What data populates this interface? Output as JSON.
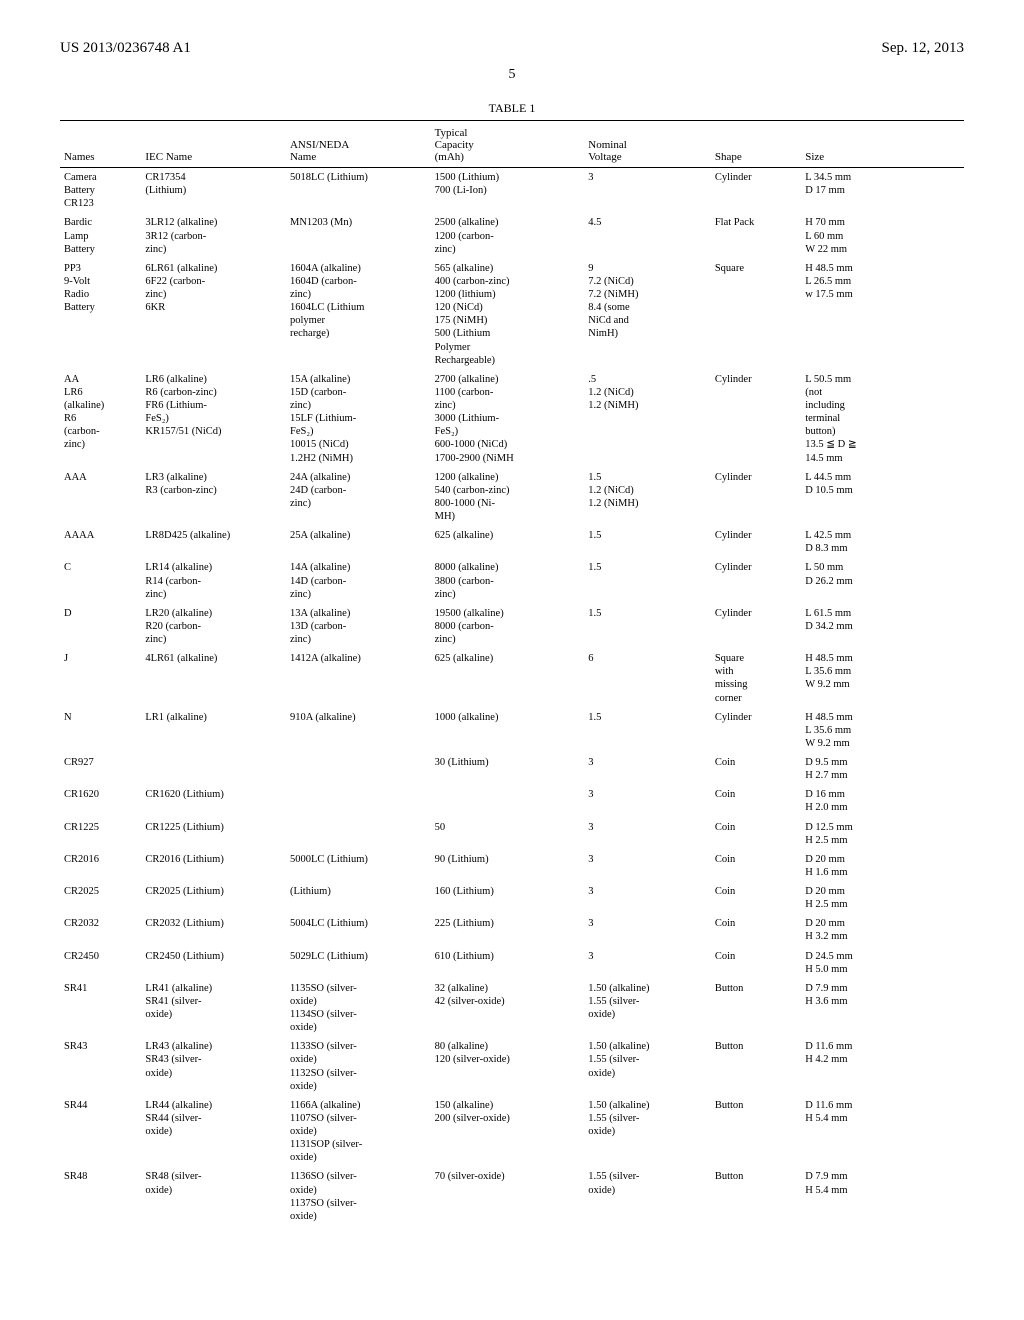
{
  "header": {
    "left": "US 2013/0236748 A1",
    "right": "Sep. 12, 2013",
    "page_number": "5"
  },
  "table": {
    "title": "TABLE 1",
    "columns": [
      "Names",
      "IEC Name",
      "ANSI/NEDA\nName",
      "Typical\nCapacity\n(mAh)",
      "Nominal\nVoltage",
      "Shape",
      "Size"
    ],
    "rows": [
      [
        "Camera\nBattery\nCR123",
        "CR17354\n(Lithium)",
        "5018LC (Lithium)",
        "1500 (Lithium)\n700 (Li-Ion)",
        "3",
        "Cylinder",
        "L 34.5 mm\nD 17 mm"
      ],
      [
        "Bardic\nLamp\nBattery",
        "3LR12 (alkaline)\n3R12 (carbon-\nzinc)",
        "MN1203 (Mn)",
        "2500 (alkaline)\n1200 (carbon-\nzinc)",
        "4.5",
        "Flat Pack",
        "H 70 mm\nL 60 mm\nW 22 mm"
      ],
      [
        "PP3\n9-Volt\nRadio\nBattery",
        "6LR61 (alkaline)\n6F22 (carbon-\nzinc)\n6KR",
        "1604A (alkaline)\n1604D (carbon-\nzinc)\n1604LC (Lithium\npolymer\nrecharge)",
        "565 (alkaline)\n400 (carbon-zinc)\n1200 (lithium)\n120 (NiCd)\n175 (NiMH)\n500 (Lithium\nPolymer\nRechargeable)",
        "9\n7.2 (NiCd)\n7.2 (NiMH)\n8.4 (some\nNiCd and\nNimH)",
        "Square",
        "H 48.5 mm\nL 26.5 mm\nw 17.5 mm"
      ],
      [
        "AA\nLR6\n(alkaline)\nR6\n(carbon-\nzinc)",
        "LR6 (alkaline)\nR6 (carbon-zinc)\nFR6 (Lithium-\nFeS₂)\nKR157/51 (NiCd)",
        "15A (alkaline)\n15D (carbon-\nzinc)\n15LF (Lithium-\nFeS₂)\n10015 (NiCd)\n1.2H2 (NiMH)",
        "2700 (alkaline)\n1100 (carbon-\nzinc)\n3000 (Lithium-\nFeS₂)\n600-1000 (NiCd)\n1700-2900 (NiMH",
        ".5\n1.2 (NiCd)\n1.2 (NiMH)",
        "Cylinder",
        "L 50.5 mm\n(not\nincluding\nterminal\nbutton)\n13.5 ≦ D ≧\n14.5 mm"
      ],
      [
        "AAA",
        "LR3 (alkaline)\nR3 (carbon-zinc)",
        "24A (alkaline)\n24D (carbon-\nzinc)",
        "1200 (alkaline)\n540 (carbon-zinc)\n800-1000 (Ni-\nMH)",
        "1.5\n1.2 (NiCd)\n1.2 (NiMH)",
        "Cylinder",
        "L 44.5 mm\nD 10.5 mm"
      ],
      [
        "AAAA",
        "LR8D425 (alkaline)",
        "25A (alkaline)",
        "625 (alkaline)",
        "1.5",
        "Cylinder",
        "L 42.5 mm\nD 8.3 mm"
      ],
      [
        "C",
        "LR14 (alkaline)\nR14 (carbon-\nzinc)",
        "14A (alkaline)\n14D (carbon-\nzinc)",
        "8000 (alkaline)\n3800 (carbon-\nzinc)",
        "1.5",
        "Cylinder",
        "L 50 mm\nD 26.2 mm"
      ],
      [
        "D",
        "LR20 (alkaline)\nR20 (carbon-\nzinc)",
        "13A (alkaline)\n13D (carbon-\nzinc)",
        "19500 (alkaline)\n8000 (carbon-\nzinc)",
        "1.5",
        "Cylinder",
        "L 61.5 mm\nD 34.2 mm"
      ],
      [
        "J",
        "4LR61 (alkaline)",
        "1412A (alkaline)",
        "625 (alkaline)",
        "6",
        "Square\nwith\nmissing\ncorner",
        "H 48.5 mm\nL 35.6 mm\nW 9.2 mm"
      ],
      [
        "N",
        "LR1 (alkaline)",
        "910A (alkaline)",
        "1000 (alkaline)",
        "1.5",
        "Cylinder",
        "H 48.5 mm\nL 35.6 mm\nW 9.2 mm"
      ],
      [
        "CR927",
        "",
        "",
        "30 (Lithium)",
        "3",
        "Coin",
        "D 9.5 mm\nH 2.7 mm"
      ],
      [
        "CR1620",
        "CR1620 (Lithium)",
        "",
        "",
        "3",
        "Coin",
        "D 16 mm\nH 2.0 mm"
      ],
      [
        "CR1225",
        "CR1225 (Lithium)",
        "",
        "50",
        "3",
        "Coin",
        "D 12.5 mm\nH 2.5 mm"
      ],
      [
        "CR2016",
        "CR2016 (Lithium)",
        "5000LC (Lithium)",
        "90 (Lithium)",
        "3",
        "Coin",
        "D 20 mm\nH 1.6 mm"
      ],
      [
        "CR2025",
        "CR2025 (Lithium)",
        "(Lithium)",
        "160 (Lithium)",
        "3",
        "Coin",
        "D 20 mm\nH 2.5 mm"
      ],
      [
        "CR2032",
        "CR2032 (Lithium)",
        "5004LC (Lithium)",
        "225 (Lithium)",
        "3",
        "Coin",
        "D 20 mm\nH 3.2 mm"
      ],
      [
        "CR2450",
        "CR2450 (Lithium)",
        "5029LC (Lithium)",
        "610 (Lithium)",
        "3",
        "Coin",
        "D 24.5 mm\nH 5.0 mm"
      ],
      [
        "SR41",
        "LR41 (alkaline)\nSR41 (silver-\noxide)",
        "1135SO (silver-\noxide)\n1134SO (silver-\noxide)",
        "32 (alkaline)\n42 (silver-oxide)",
        "1.50 (alkaline)\n1.55 (silver-\noxide)",
        "Button",
        "D 7.9 mm\nH 3.6 mm"
      ],
      [
        "SR43",
        "LR43 (alkaline)\nSR43 (silver-\noxide)",
        "1133SO (silver-\noxide)\n1132SO (silver-\noxide)",
        "80 (alkaline)\n120 (silver-oxide)",
        "1.50 (alkaline)\n1.55 (silver-\noxide)",
        "Button",
        "D 11.6 mm\nH 4.2 mm"
      ],
      [
        "SR44",
        "LR44 (alkaline)\nSR44 (silver-\noxide)",
        "1166A (alkaline)\n1107SO (silver-\noxide)\n1131SOP (silver-\noxide)",
        "150 (alkaline)\n200 (silver-oxide)",
        "1.50 (alkaline)\n1.55 (silver-\noxide)",
        "Button",
        "D 11.6 mm\nH 5.4 mm"
      ],
      [
        "SR48",
        "SR48 (silver-\noxide)",
        "1136SO (silver-\noxide)\n1137SO (silver-\noxide)",
        "70 (silver-oxide)",
        "1.55 (silver-\noxide)",
        "Button",
        "D 7.9 mm\nH 5.4 mm"
      ]
    ]
  }
}
